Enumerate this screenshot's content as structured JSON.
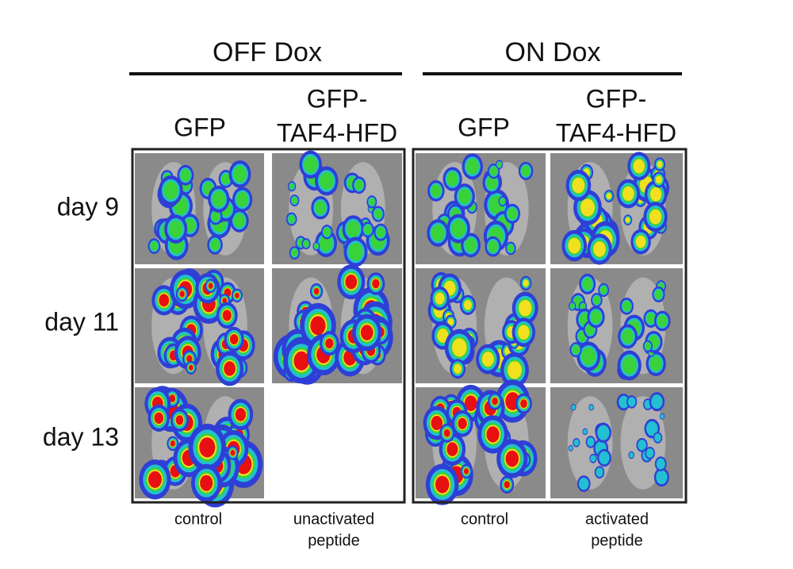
{
  "figure": {
    "groups": [
      {
        "title": "OFF Dox",
        "columns": [
          {
            "label": [
              "GFP"
            ],
            "caption": [
              "control"
            ]
          },
          {
            "label": [
              "GFP-",
              "TAF4-HFD"
            ],
            "caption": [
              "unactivated",
              "peptide"
            ]
          }
        ]
      },
      {
        "title": "ON Dox",
        "columns": [
          {
            "label": [
              "GFP"
            ],
            "caption": [
              "control"
            ]
          },
          {
            "label": [
              "GFP-",
              "TAF4-HFD"
            ],
            "caption": [
              "activated",
              "peptide"
            ]
          }
        ]
      }
    ],
    "rows": [
      "day 9",
      "day 11",
      "day 13"
    ]
  }
}
